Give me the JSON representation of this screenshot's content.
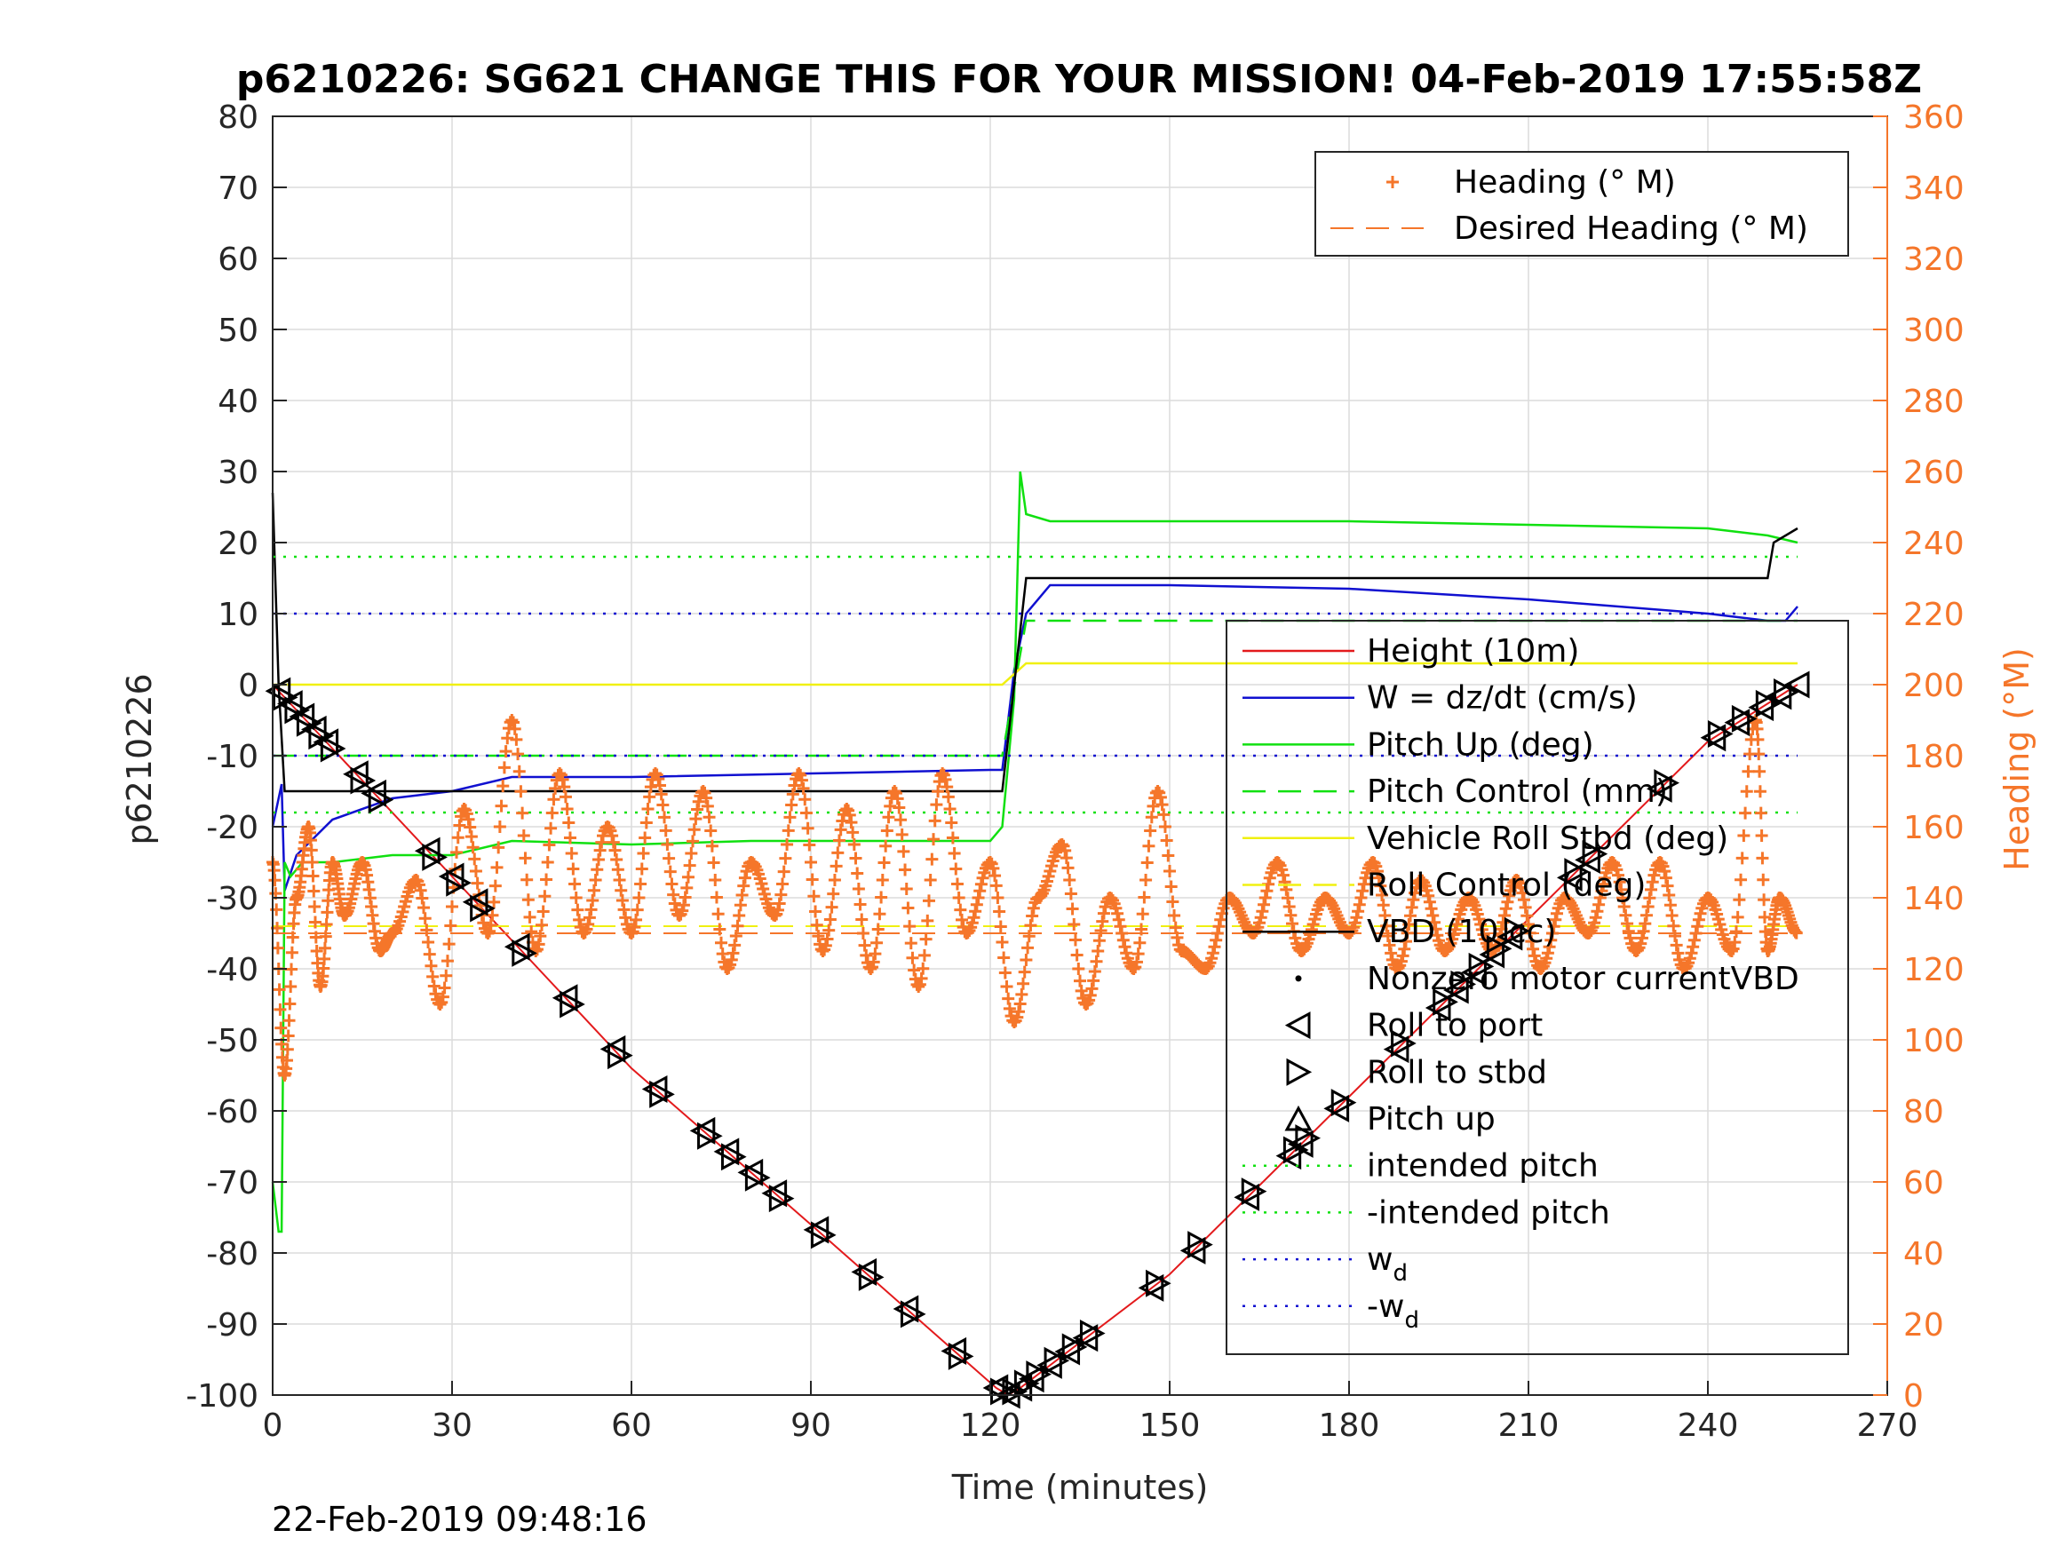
{
  "chart_data": {
    "type": "line",
    "title": "p6210226: SG621 CHANGE THIS FOR YOUR MISSION! 04-Feb-2019 17:55:58Z",
    "xlabel": "Time (minutes)",
    "ylabel": "p6210226",
    "y2label": "Heading (°M)",
    "xlim": [
      0,
      270
    ],
    "ylim": [
      -100,
      80
    ],
    "y2lim": [
      0,
      360
    ],
    "xticks": [
      "0",
      "30",
      "60",
      "90",
      "120",
      "150",
      "180",
      "210",
      "240",
      "270"
    ],
    "yticks": [
      "80",
      "70",
      "60",
      "50",
      "40",
      "30",
      "20",
      "10",
      "0",
      "-10",
      "-20",
      "-30",
      "-40",
      "-50",
      "-60",
      "-70",
      "-80",
      "-90",
      "-100"
    ],
    "y2ticks": [
      "360",
      "340",
      "320",
      "300",
      "280",
      "260",
      "240",
      "220",
      "200",
      "180",
      "160",
      "140",
      "120",
      "100",
      "80",
      "60",
      "40",
      "20",
      "0"
    ],
    "grid": true,
    "timestamp": "22-Feb-2019 09:48:16",
    "colors": {
      "height": "#e31a1c",
      "w": "#1010d0",
      "pitch": "#10e010",
      "roll": "#f0f010",
      "vbd": "#000000",
      "heading": "#f5762a"
    },
    "legend_top": {
      "position": "top-right",
      "entries": [
        {
          "label": "Heading (° M)",
          "style": "marker-plus",
          "color": "#f5762a"
        },
        {
          "label": "Desired Heading (° M)",
          "style": "dashed",
          "color": "#f5762a"
        }
      ]
    },
    "legend_main": {
      "position": "center-right",
      "entries": [
        {
          "label": "Height (10m)",
          "style": "solid",
          "color": "#e31a1c"
        },
        {
          "label": "W = dz/dt (cm/s)",
          "style": "solid",
          "color": "#1010d0"
        },
        {
          "label": "Pitch Up (deg)",
          "style": "solid",
          "color": "#10e010"
        },
        {
          "label": "Pitch Control (mm)",
          "style": "dashed",
          "color": "#10e010"
        },
        {
          "label": "Vehicle Roll Stbd (deg)",
          "style": "solid",
          "color": "#f0f010"
        },
        {
          "label": "Roll Control (deg)",
          "style": "dashed",
          "color": "#f0f010"
        },
        {
          "label": "VBD (10 cc)",
          "style": "solid",
          "color": "#000000"
        },
        {
          "label": "Nonzero motor currentVBD",
          "style": "dot",
          "color": "#000000"
        },
        {
          "label": "Roll to port",
          "style": "marker-left",
          "color": "#000000"
        },
        {
          "label": "Roll to stbd",
          "style": "marker-right",
          "color": "#000000"
        },
        {
          "label": "Pitch up",
          "style": "marker-up",
          "color": "#000000"
        },
        {
          "label": "intended pitch",
          "style": "dotted",
          "color": "#10e010"
        },
        {
          "label": "-intended pitch",
          "style": "dotted",
          "color": "#10e010"
        },
        {
          "label": "w",
          "sub": "d",
          "style": "dotted",
          "color": "#1010d0"
        },
        {
          "label": "-w",
          "sub": "d",
          "style": "dotted",
          "color": "#1010d0"
        }
      ]
    },
    "series": [
      {
        "name": "Height (10m)",
        "axis": "left",
        "x": [
          0,
          30,
          60,
          90,
          121,
          123,
          125,
          150,
          180,
          210,
          240,
          255
        ],
        "y": [
          0,
          -27,
          -54,
          -76,
          -99,
          -100,
          -99,
          -83,
          -58,
          -33,
          -8,
          0
        ]
      },
      {
        "name": "W = dz/dt (cm/s)",
        "axis": "left",
        "x": [
          0,
          1.5,
          2,
          4,
          10,
          20,
          30,
          40,
          60,
          90,
          120,
          122,
          124,
          126,
          130,
          150,
          180,
          210,
          240,
          250,
          253,
          255
        ],
        "y": [
          -20,
          -14,
          -29,
          -24,
          -19,
          -16,
          -15,
          -13,
          -13,
          -12.5,
          -12,
          -12,
          2,
          10,
          14,
          14,
          13.5,
          12,
          10,
          9,
          9,
          11
        ]
      },
      {
        "name": "Pitch Up (deg)",
        "axis": "left",
        "x": [
          0,
          1,
          1.5,
          2,
          3,
          5,
          10,
          20,
          30,
          40,
          60,
          80,
          100,
          120,
          122,
          124,
          125,
          126,
          130,
          150,
          180,
          210,
          240,
          250,
          255
        ],
        "y": [
          -70,
          -77,
          -77,
          -25,
          -27,
          -25,
          -25,
          -24,
          -24,
          -22,
          -22.5,
          -22,
          -22,
          -22,
          -20,
          -2,
          30,
          24,
          23,
          23,
          23,
          22.5,
          22,
          21,
          20
        ]
      },
      {
        "name": "Pitch Control (mm)",
        "axis": "left",
        "x": [
          0,
          121,
          122,
          126,
          150,
          180,
          210,
          240,
          255
        ],
        "y": [
          -10,
          -10,
          -10,
          9,
          9,
          9,
          9,
          9,
          9
        ]
      },
      {
        "name": "Vehicle Roll Stbd (deg)",
        "axis": "left",
        "x": [
          0,
          122,
          126,
          255
        ],
        "y": [
          0,
          0,
          3,
          3
        ]
      },
      {
        "name": "Roll Control (deg)",
        "axis": "left",
        "x": [
          0,
          255
        ],
        "y": [
          -34,
          -34
        ]
      },
      {
        "name": "VBD (10 cc)",
        "axis": "left",
        "x": [
          0,
          1,
          2,
          121,
          122,
          126,
          250,
          251,
          255
        ],
        "y": [
          27,
          0,
          -15,
          -15,
          -15,
          15,
          15,
          20,
          22
        ]
      },
      {
        "name": "intended pitch",
        "axis": "left",
        "x": [
          0,
          255
        ],
        "y": [
          18,
          18
        ]
      },
      {
        "name": "-intended pitch",
        "axis": "left",
        "x": [
          0,
          255
        ],
        "y": [
          -18,
          -18
        ]
      },
      {
        "name": "w_d",
        "axis": "left",
        "x": [
          0,
          255
        ],
        "y": [
          10,
          10
        ]
      },
      {
        "name": "-w_d",
        "axis": "left",
        "x": [
          0,
          255
        ],
        "y": [
          -10,
          -10
        ]
      },
      {
        "name": "Heading (° M)",
        "axis": "right",
        "x": [
          0,
          2,
          4,
          6,
          8,
          10,
          12,
          15,
          18,
          20,
          24,
          28,
          32,
          36,
          40,
          44,
          48,
          52,
          56,
          60,
          64,
          68,
          72,
          76,
          80,
          84,
          88,
          92,
          96,
          100,
          104,
          108,
          112,
          116,
          120,
          124,
          128,
          132,
          136,
          140,
          144,
          148,
          152,
          156,
          160,
          164,
          168,
          172,
          176,
          180,
          184,
          188,
          192,
          196,
          200,
          204,
          208,
          212,
          216,
          220,
          224,
          228,
          232,
          236,
          240,
          244,
          248,
          250,
          252,
          255
        ],
        "y": [
          150,
          90,
          140,
          160,
          115,
          150,
          135,
          150,
          125,
          130,
          145,
          110,
          165,
          130,
          190,
          125,
          175,
          130,
          160,
          130,
          175,
          135,
          170,
          120,
          150,
          135,
          175,
          125,
          165,
          120,
          170,
          115,
          175,
          130,
          150,
          105,
          140,
          155,
          110,
          140,
          120,
          170,
          125,
          120,
          140,
          130,
          150,
          125,
          140,
          130,
          150,
          120,
          145,
          125,
          140,
          125,
          145,
          120,
          140,
          130,
          150,
          125,
          150,
          120,
          140,
          125,
          190,
          125,
          140,
          130
        ]
      },
      {
        "name": "Desired Heading (° M)",
        "axis": "right",
        "x": [
          0,
          255
        ],
        "y": [
          130,
          130
        ]
      }
    ],
    "roll_to_port_x": [
      1,
      3,
      5,
      7,
      9,
      14,
      17,
      26,
      30,
      34,
      41,
      49,
      57,
      64,
      72,
      76,
      80,
      84,
      91,
      99,
      106,
      114,
      121,
      123,
      125,
      127,
      130,
      133,
      136,
      147,
      154,
      163,
      170,
      172,
      178,
      188,
      195,
      198,
      201,
      204,
      207,
      217,
      220,
      232,
      241,
      245,
      249,
      252,
      255
    ],
    "roll_to_stbd_x": [
      2,
      4,
      6,
      8,
      10,
      15,
      18,
      27,
      31,
      35,
      42,
      50,
      58,
      65,
      73,
      77,
      81,
      85,
      92,
      100,
      107,
      115,
      122,
      124,
      126,
      128,
      131,
      134,
      137,
      148,
      155,
      164,
      171,
      173,
      179,
      189,
      196,
      199,
      202,
      205,
      208,
      218,
      221,
      233,
      242,
      246,
      250,
      253
    ]
  }
}
